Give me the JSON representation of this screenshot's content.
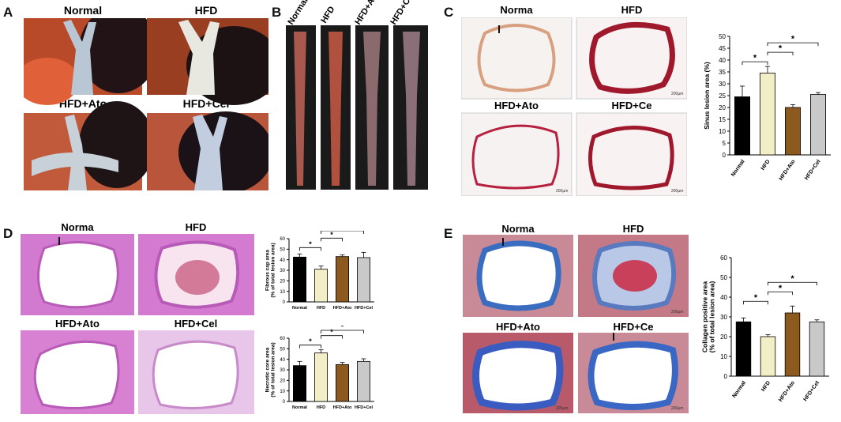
{
  "figure": {
    "panels": {
      "A": {
        "label": "A",
        "titles": [
          "Normal",
          "HFD",
          "HFD+Ato",
          "HFD+Cel"
        ]
      },
      "B": {
        "label": "B",
        "titles": [
          "Normal",
          "HFD",
          "HFD+Ato",
          "HFD+Cel"
        ]
      },
      "C": {
        "label": "C",
        "titles": [
          "Norma",
          "HFD",
          "HFD+Ato",
          "HFD+Ce"
        ],
        "scale_bar": "200µm"
      },
      "D": {
        "label": "D",
        "titles": [
          "Norma",
          "HFD",
          "HFD+Ato",
          "HFD+Cel"
        ]
      },
      "E": {
        "label": "E",
        "titles": [
          "Norma",
          "HFD",
          "HFD+Ato",
          "HFD+Ce"
        ],
        "scale_bar": "200µm"
      }
    },
    "colors": {
      "normal": "#000000",
      "hfd": "#f2efc6",
      "ato": "#8c5a1e",
      "cel": "#c9c9c9"
    }
  },
  "chart_data": [
    {
      "id": "C",
      "type": "bar",
      "categories": [
        "Normal",
        "HFD",
        "HFD+Ato",
        "HFD+Cel"
      ],
      "values": [
        24.5,
        34.5,
        20.0,
        25.5
      ],
      "errors": [
        4.5,
        2.8,
        1.2,
        0.8
      ],
      "ylabel": "Sinus lesion area (%)",
      "ylim": [
        0,
        50
      ],
      "yticks": [
        0,
        5,
        10,
        15,
        20,
        25,
        30,
        35,
        40,
        45,
        50
      ],
      "significance": [
        {
          "from": 0,
          "to": 1,
          "label": "*"
        },
        {
          "from": 1,
          "to": 2,
          "label": "*"
        },
        {
          "from": 1,
          "to": 3,
          "label": "*"
        }
      ]
    },
    {
      "id": "D1",
      "type": "bar",
      "categories": [
        "Normal",
        "HFD",
        "HFD+Ato",
        "HFD+Cel"
      ],
      "values": [
        42.5,
        31.0,
        43.0,
        42.0
      ],
      "errors": [
        3.0,
        3.0,
        1.5,
        5.0
      ],
      "ylabel": "Fibrous cap area\n(% of total lesion area)",
      "ylim": [
        0,
        60
      ],
      "yticks": [
        0,
        10,
        20,
        30,
        40,
        50,
        60
      ],
      "significance": [
        {
          "from": 0,
          "to": 1,
          "label": "*"
        },
        {
          "from": 1,
          "to": 2,
          "label": "*"
        },
        {
          "from": 1,
          "to": 3,
          "label": "*"
        }
      ]
    },
    {
      "id": "D2",
      "type": "bar",
      "categories": [
        "Normal",
        "HFD",
        "HFD+Ato",
        "HFD+Cel"
      ],
      "values": [
        34.0,
        46.0,
        35.0,
        38.0
      ],
      "errors": [
        4.0,
        3.0,
        2.0,
        2.5
      ],
      "ylabel": "Necrotic core area\n(% of total lesion area)",
      "ylim": [
        0,
        60
      ],
      "yticks": [
        0,
        10,
        20,
        30,
        40,
        50,
        60
      ],
      "significance": [
        {
          "from": 0,
          "to": 1,
          "label": "*"
        },
        {
          "from": 1,
          "to": 2,
          "label": "*"
        },
        {
          "from": 1,
          "to": 3,
          "label": "*"
        }
      ]
    },
    {
      "id": "E",
      "type": "bar",
      "categories": [
        "Normal",
        "HFD",
        "HFD+Ato",
        "HFD+Cel"
      ],
      "values": [
        27.5,
        20.0,
        32.0,
        27.5
      ],
      "errors": [
        2.0,
        1.0,
        3.5,
        1.0
      ],
      "ylabel": "Collagen positive area\n(% of total lesion area)",
      "ylim": [
        0,
        60
      ],
      "yticks": [
        0,
        10,
        20,
        30,
        40,
        50,
        60
      ],
      "significance": [
        {
          "from": 0,
          "to": 1,
          "label": "*"
        },
        {
          "from": 1,
          "to": 2,
          "label": "*"
        },
        {
          "from": 1,
          "to": 3,
          "label": "*"
        }
      ]
    }
  ]
}
